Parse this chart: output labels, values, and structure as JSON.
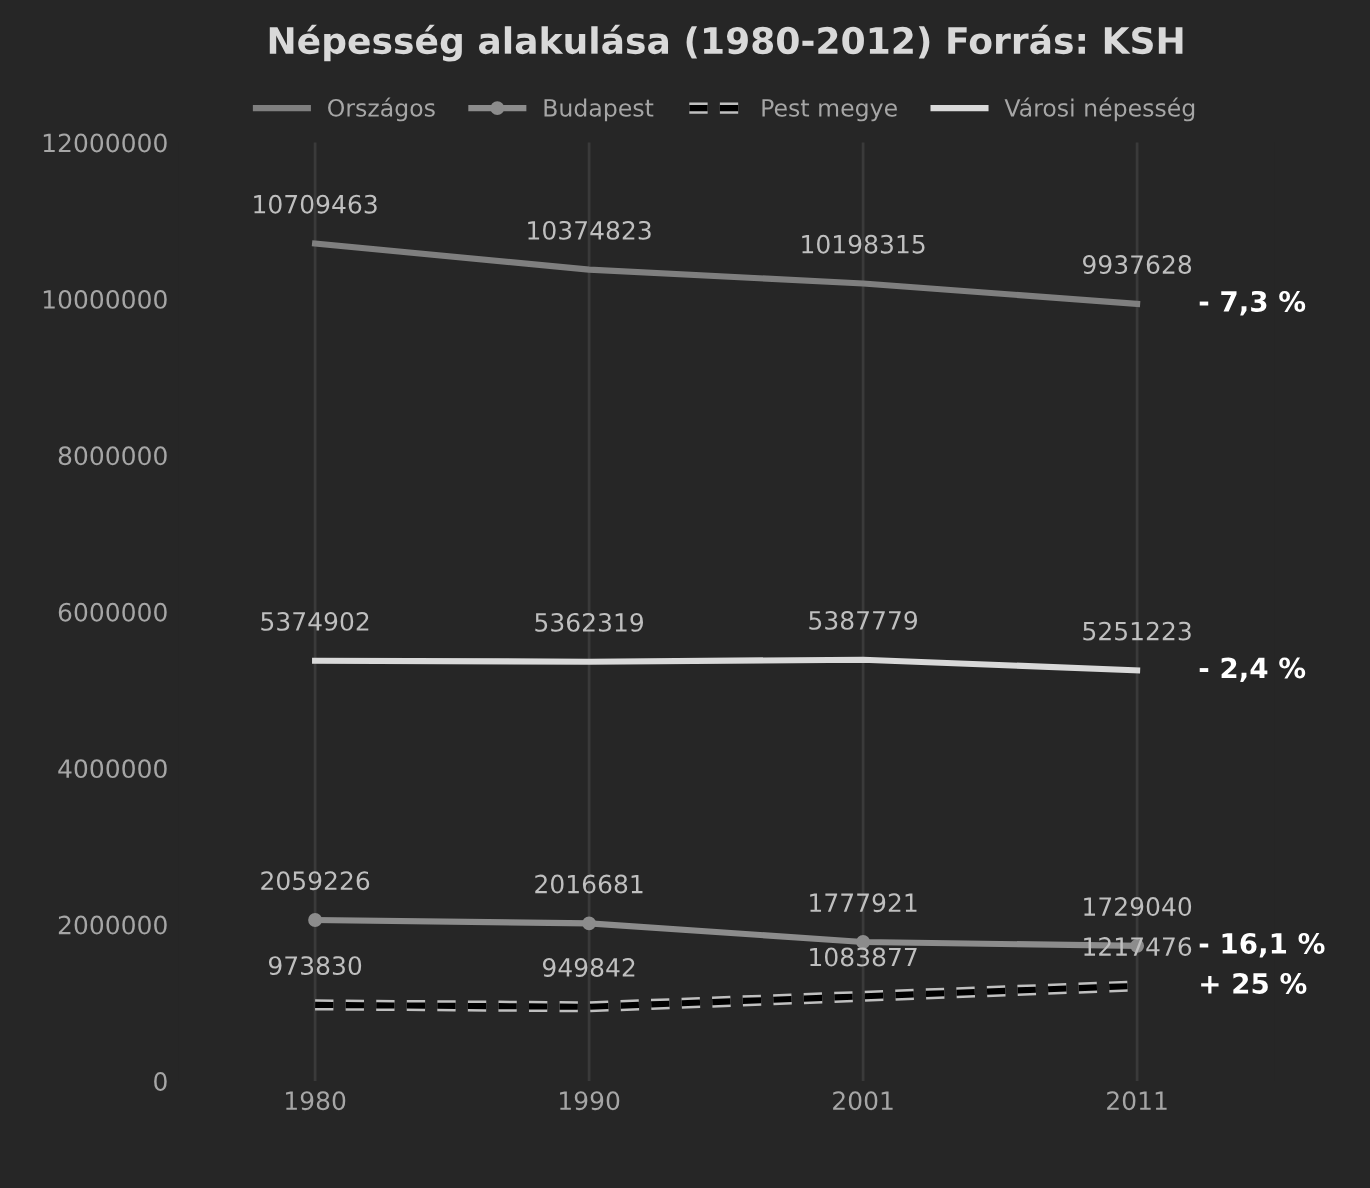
{
  "chart_data": {
    "type": "line",
    "title": "Népesség alakulása (1980-2012) Forrás: KSH",
    "categories": [
      "1980",
      "1990",
      "2001",
      "2011"
    ],
    "series": [
      {
        "name": "Országos",
        "color": "#7f7f7f",
        "values": [
          10709463,
          10374823,
          10198315,
          9937628
        ]
      },
      {
        "name": "Budapest",
        "color": "#8c8c8c",
        "marker": "circle",
        "values": [
          2059226,
          2016681,
          1777921,
          1729040
        ]
      },
      {
        "name": "Pest megye",
        "color": "#000000",
        "line_style": "dashed",
        "values": [
          973830,
          949842,
          1083877,
          1217476
        ]
      },
      {
        "name": "Városi népesség",
        "color": "#d9d9d9",
        "values": [
          5374902,
          5362319,
          5387779,
          5251223
        ]
      }
    ],
    "ylim": [
      0,
      12000000
    ],
    "yticks": [
      0,
      2000000,
      4000000,
      6000000,
      8000000,
      10000000,
      12000000
    ],
    "grid": "x",
    "legend": "top",
    "data_labels": true,
    "annotations": [
      {
        "text": "- 7,3 %",
        "x": "2011",
        "y": 9937628
      },
      {
        "text": "- 2,4 %",
        "x": "2011",
        "y": 5251223
      },
      {
        "text": "- 16,1 %",
        "x": "2011",
        "y": 1729040
      },
      {
        "text": "+ 25 %",
        "x": "2011",
        "y": 1217476
      }
    ]
  }
}
